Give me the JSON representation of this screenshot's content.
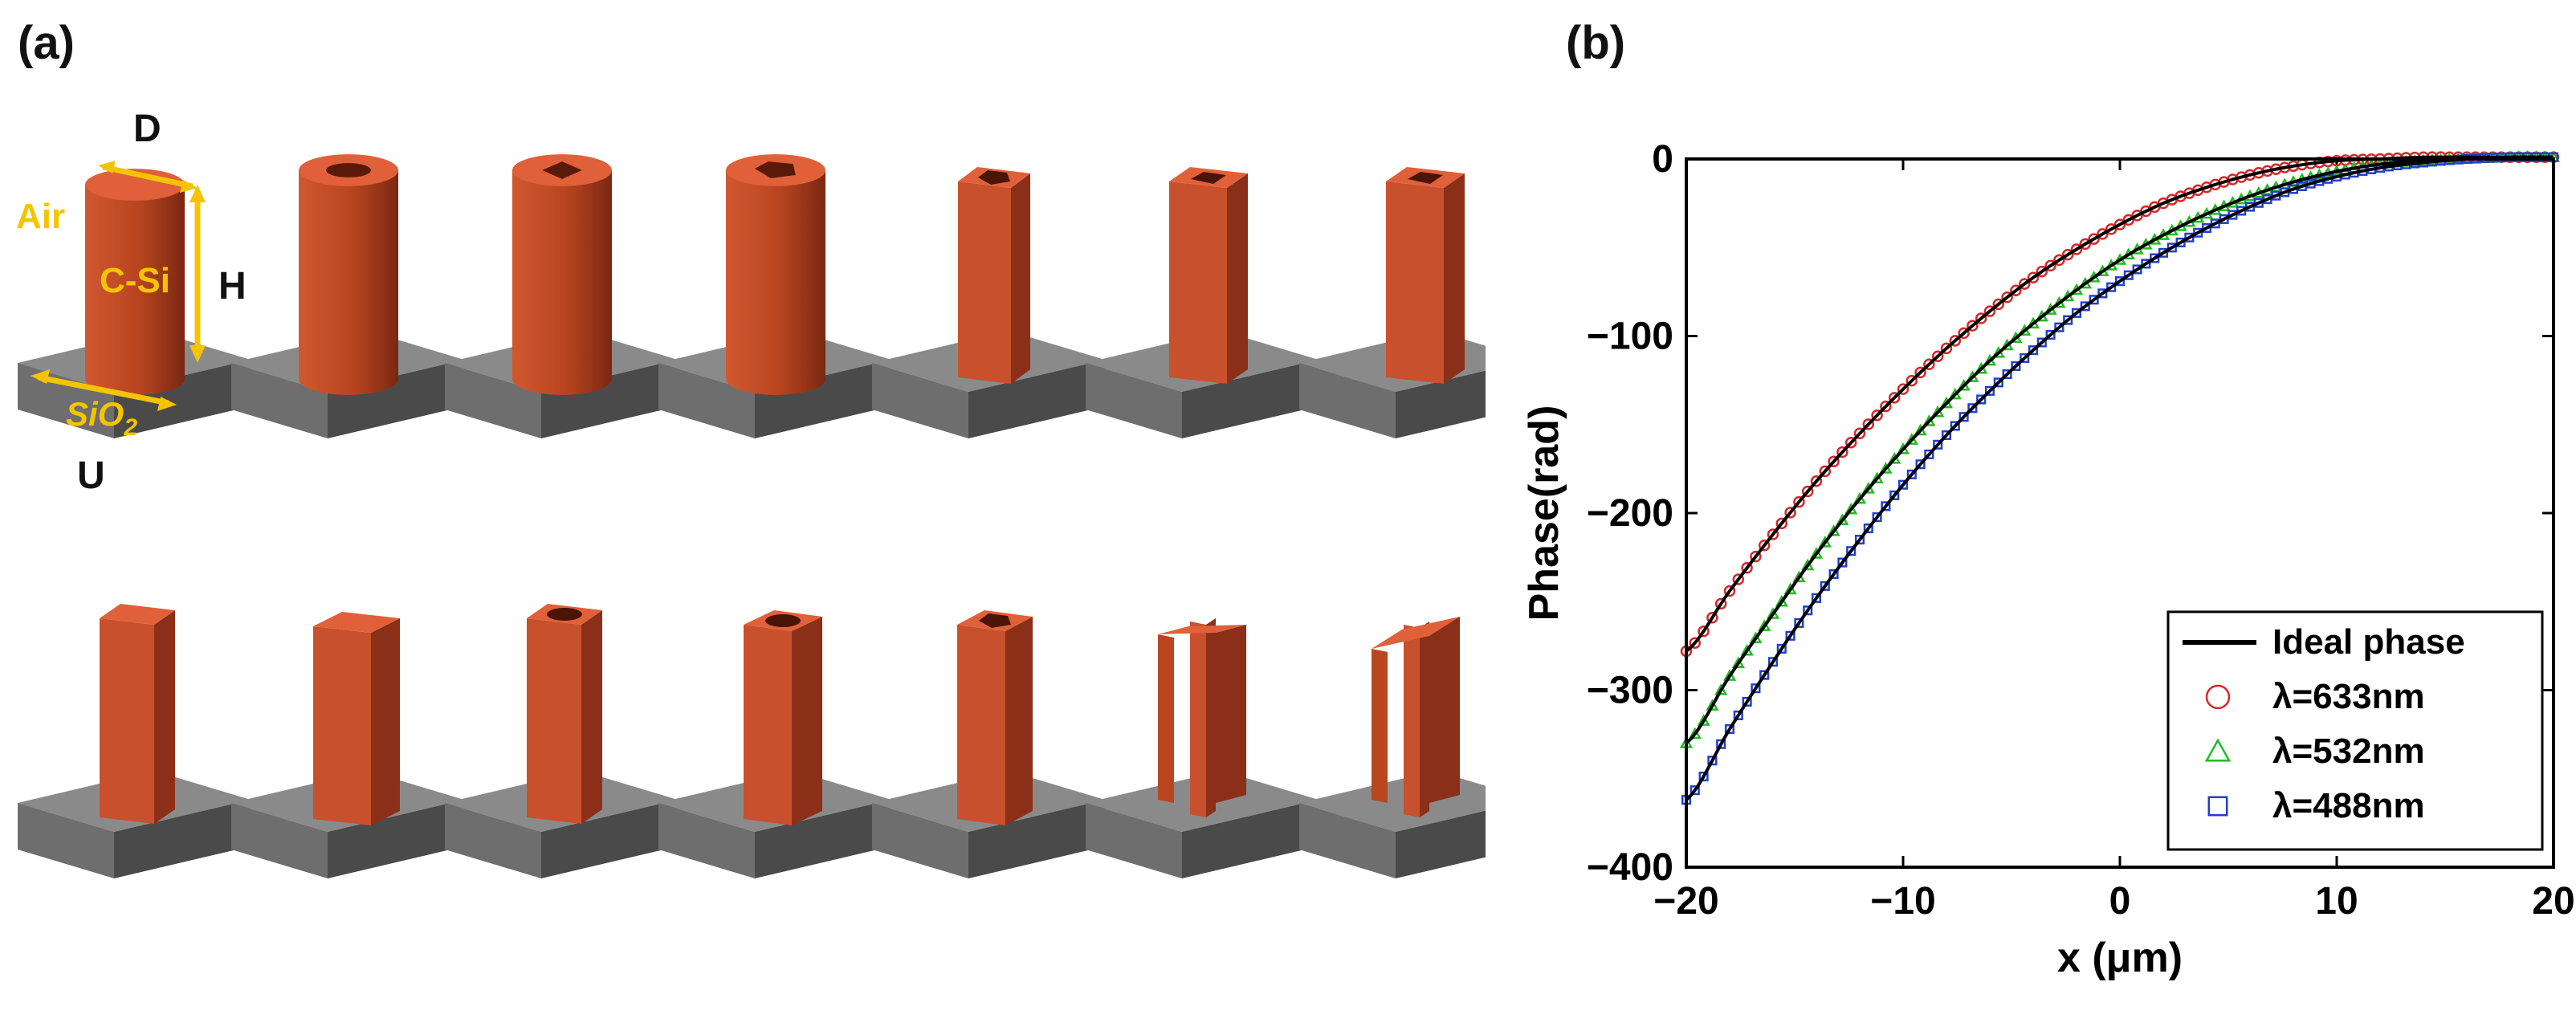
{
  "panel_a": {
    "label": "(a)",
    "annotations": {
      "diameter": "D",
      "height": "H",
      "period": "U",
      "air": "Air",
      "pillar": "C-Si",
      "substrate": "SiO",
      "substrate_sub": "2"
    },
    "row1_shapes": [
      "cylinder",
      "hollow-cylinder",
      "cylinder-square-hole",
      "cylinder-pentagon-hole",
      "square-pentagon-hole",
      "hollow-square",
      "tall-square-box"
    ],
    "row2_shapes": [
      "square-pillar",
      "rotated-square-pillar",
      "square-circle-hole",
      "hexagon-circle-hole",
      "pentagon-pentagon-hole",
      "cross-pillar",
      "rotated-cross-pillar"
    ],
    "colors": {
      "pillar_front": "#c9502c",
      "pillar_side": "#8c2f18",
      "pillar_top": "#e0603a",
      "substrate_top": "#8a8a8a",
      "substrate_front": "#6e6e6e",
      "substrate_side": "#4a4a4a",
      "annotation": "#f5c400"
    }
  },
  "panel_b": {
    "label": "(b)"
  },
  "chart_data": {
    "type": "line",
    "xlabel": "x (μm)",
    "ylabel": "Phase(rad)",
    "xlim": [
      -20,
      20
    ],
    "ylim": [
      -400,
      0
    ],
    "xticks": [
      -20,
      -10,
      0,
      10,
      20
    ],
    "yticks": [
      0,
      -100,
      -200,
      -300,
      -400
    ],
    "xtick_labels": [
      "−20",
      "−10",
      "0",
      "10",
      "20"
    ],
    "ytick_labels": [
      "0",
      "−100",
      "−200",
      "−300",
      "−400"
    ],
    "x": [
      -20,
      -18,
      -16,
      -14,
      -12,
      -10,
      -8,
      -6,
      -4,
      -2,
      0,
      2,
      4,
      6,
      8,
      10,
      12,
      14,
      16,
      18,
      20
    ],
    "series": [
      {
        "name": "Ideal phase",
        "style": "line",
        "color": "#000000"
      },
      {
        "name": "λ=633nm",
        "style": "circle",
        "color": "#d62728",
        "values": [
          -278,
          -244,
          -212,
          -182,
          -155,
          -130,
          -107,
          -86,
          -67,
          -51,
          -37,
          -25,
          -16,
          -9,
          -4,
          -1,
          0,
          1,
          1,
          1,
          1
        ]
      },
      {
        "name": "λ=532nm",
        "style": "triangle",
        "color": "#22bb22",
        "values": [
          -330,
          -292,
          -257,
          -223,
          -192,
          -164,
          -138,
          -114,
          -93,
          -74,
          -57,
          -43,
          -31,
          -21,
          -13,
          -7,
          -3,
          -1,
          0,
          1,
          1
        ]
      },
      {
        "name": "λ=488nm",
        "style": "square",
        "color": "#1f3fcc",
        "values": [
          -362,
          -322,
          -284,
          -248,
          -215,
          -184,
          -156,
          -131,
          -108,
          -87,
          -69,
          -53,
          -39,
          -27,
          -17,
          -10,
          -5,
          -2,
          0,
          1,
          1
        ]
      }
    ],
    "legend_location": "lower-right"
  }
}
